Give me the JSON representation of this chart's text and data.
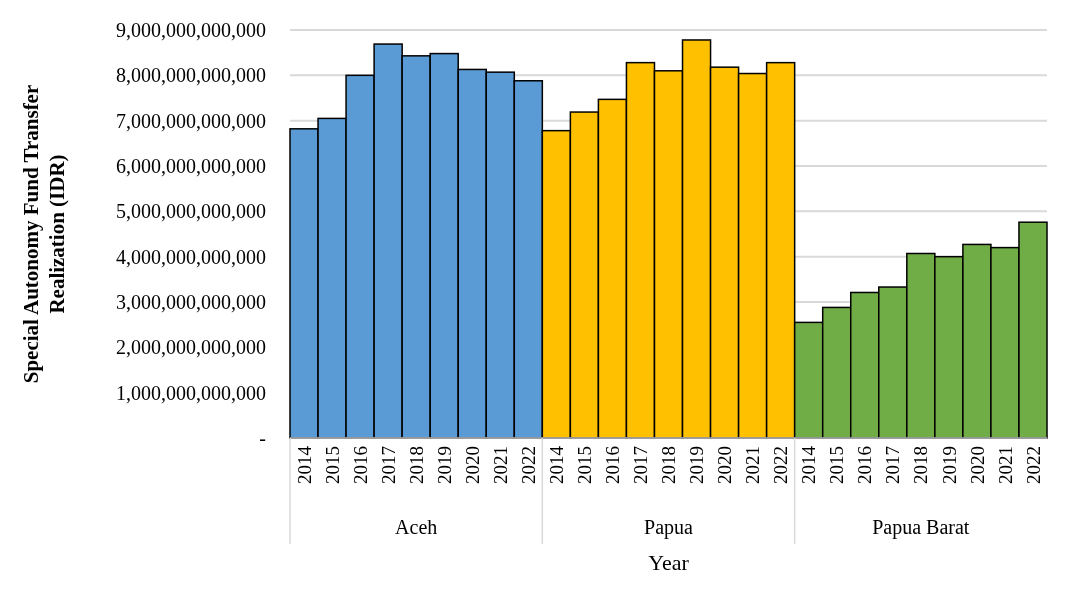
{
  "chart_data": {
    "type": "bar",
    "grid": "y",
    "xlabel": "Year",
    "ylabel": "Special Autonomy Fund Transfer Realization (IDR)",
    "categories": [
      "2014",
      "2015",
      "2016",
      "2017",
      "2018",
      "2019",
      "2020",
      "2021",
      "2022",
      "2014",
      "2015",
      "2016",
      "2017",
      "2018",
      "2019",
      "2020",
      "2021",
      "2022",
      "2014",
      "2015",
      "2016",
      "2017",
      "2018",
      "2019",
      "2020",
      "2021",
      "2022"
    ],
    "values": [
      6820000000000,
      7050000000000,
      8000000000000,
      8690000000000,
      8430000000000,
      8480000000000,
      8130000000000,
      8070000000000,
      7880000000000,
      6780000000000,
      7190000000000,
      7470000000000,
      8280000000000,
      8100000000000,
      8780000000000,
      8180000000000,
      8040000000000,
      8280000000000,
      2550000000000,
      2880000000000,
      3210000000000,
      3330000000000,
      4070000000000,
      4000000000000,
      4270000000000,
      4200000000000,
      4760000000000
    ],
    "colors": [
      "#5b9bd5",
      "#5b9bd5",
      "#5b9bd5",
      "#5b9bd5",
      "#5b9bd5",
      "#5b9bd5",
      "#5b9bd5",
      "#5b9bd5",
      "#5b9bd5",
      "#ffc000",
      "#ffc000",
      "#ffc000",
      "#ffc000",
      "#ffc000",
      "#ffc000",
      "#ffc000",
      "#ffc000",
      "#ffc000",
      "#70ad47",
      "#70ad47",
      "#70ad47",
      "#70ad47",
      "#70ad47",
      "#70ad47",
      "#70ad47",
      "#70ad47",
      "#70ad47"
    ],
    "annotations": [
      "Aceh",
      "Papua",
      "Papua Barat"
    ],
    "ylim": [
      0,
      9000000000000
    ],
    "yticks": [
      {
        "value": 0,
        "label": "-"
      },
      {
        "value": 1000000000000,
        "label": "1,000,000,000,000"
      },
      {
        "value": 2000000000000,
        "label": "2,000,000,000,000"
      },
      {
        "value": 3000000000000,
        "label": "3,000,000,000,000"
      },
      {
        "value": 4000000000000,
        "label": "4,000,000,000,000"
      },
      {
        "value": 5000000000000,
        "label": "5,000,000,000,000"
      },
      {
        "value": 6000000000000,
        "label": "6,000,000,000,000"
      },
      {
        "value": 7000000000000,
        "label": "7,000,000,000,000"
      },
      {
        "value": 8000000000000,
        "label": "8,000,000,000,000"
      },
      {
        "value": 9000000000000,
        "label": "9,000,000,000,000"
      }
    ]
  }
}
